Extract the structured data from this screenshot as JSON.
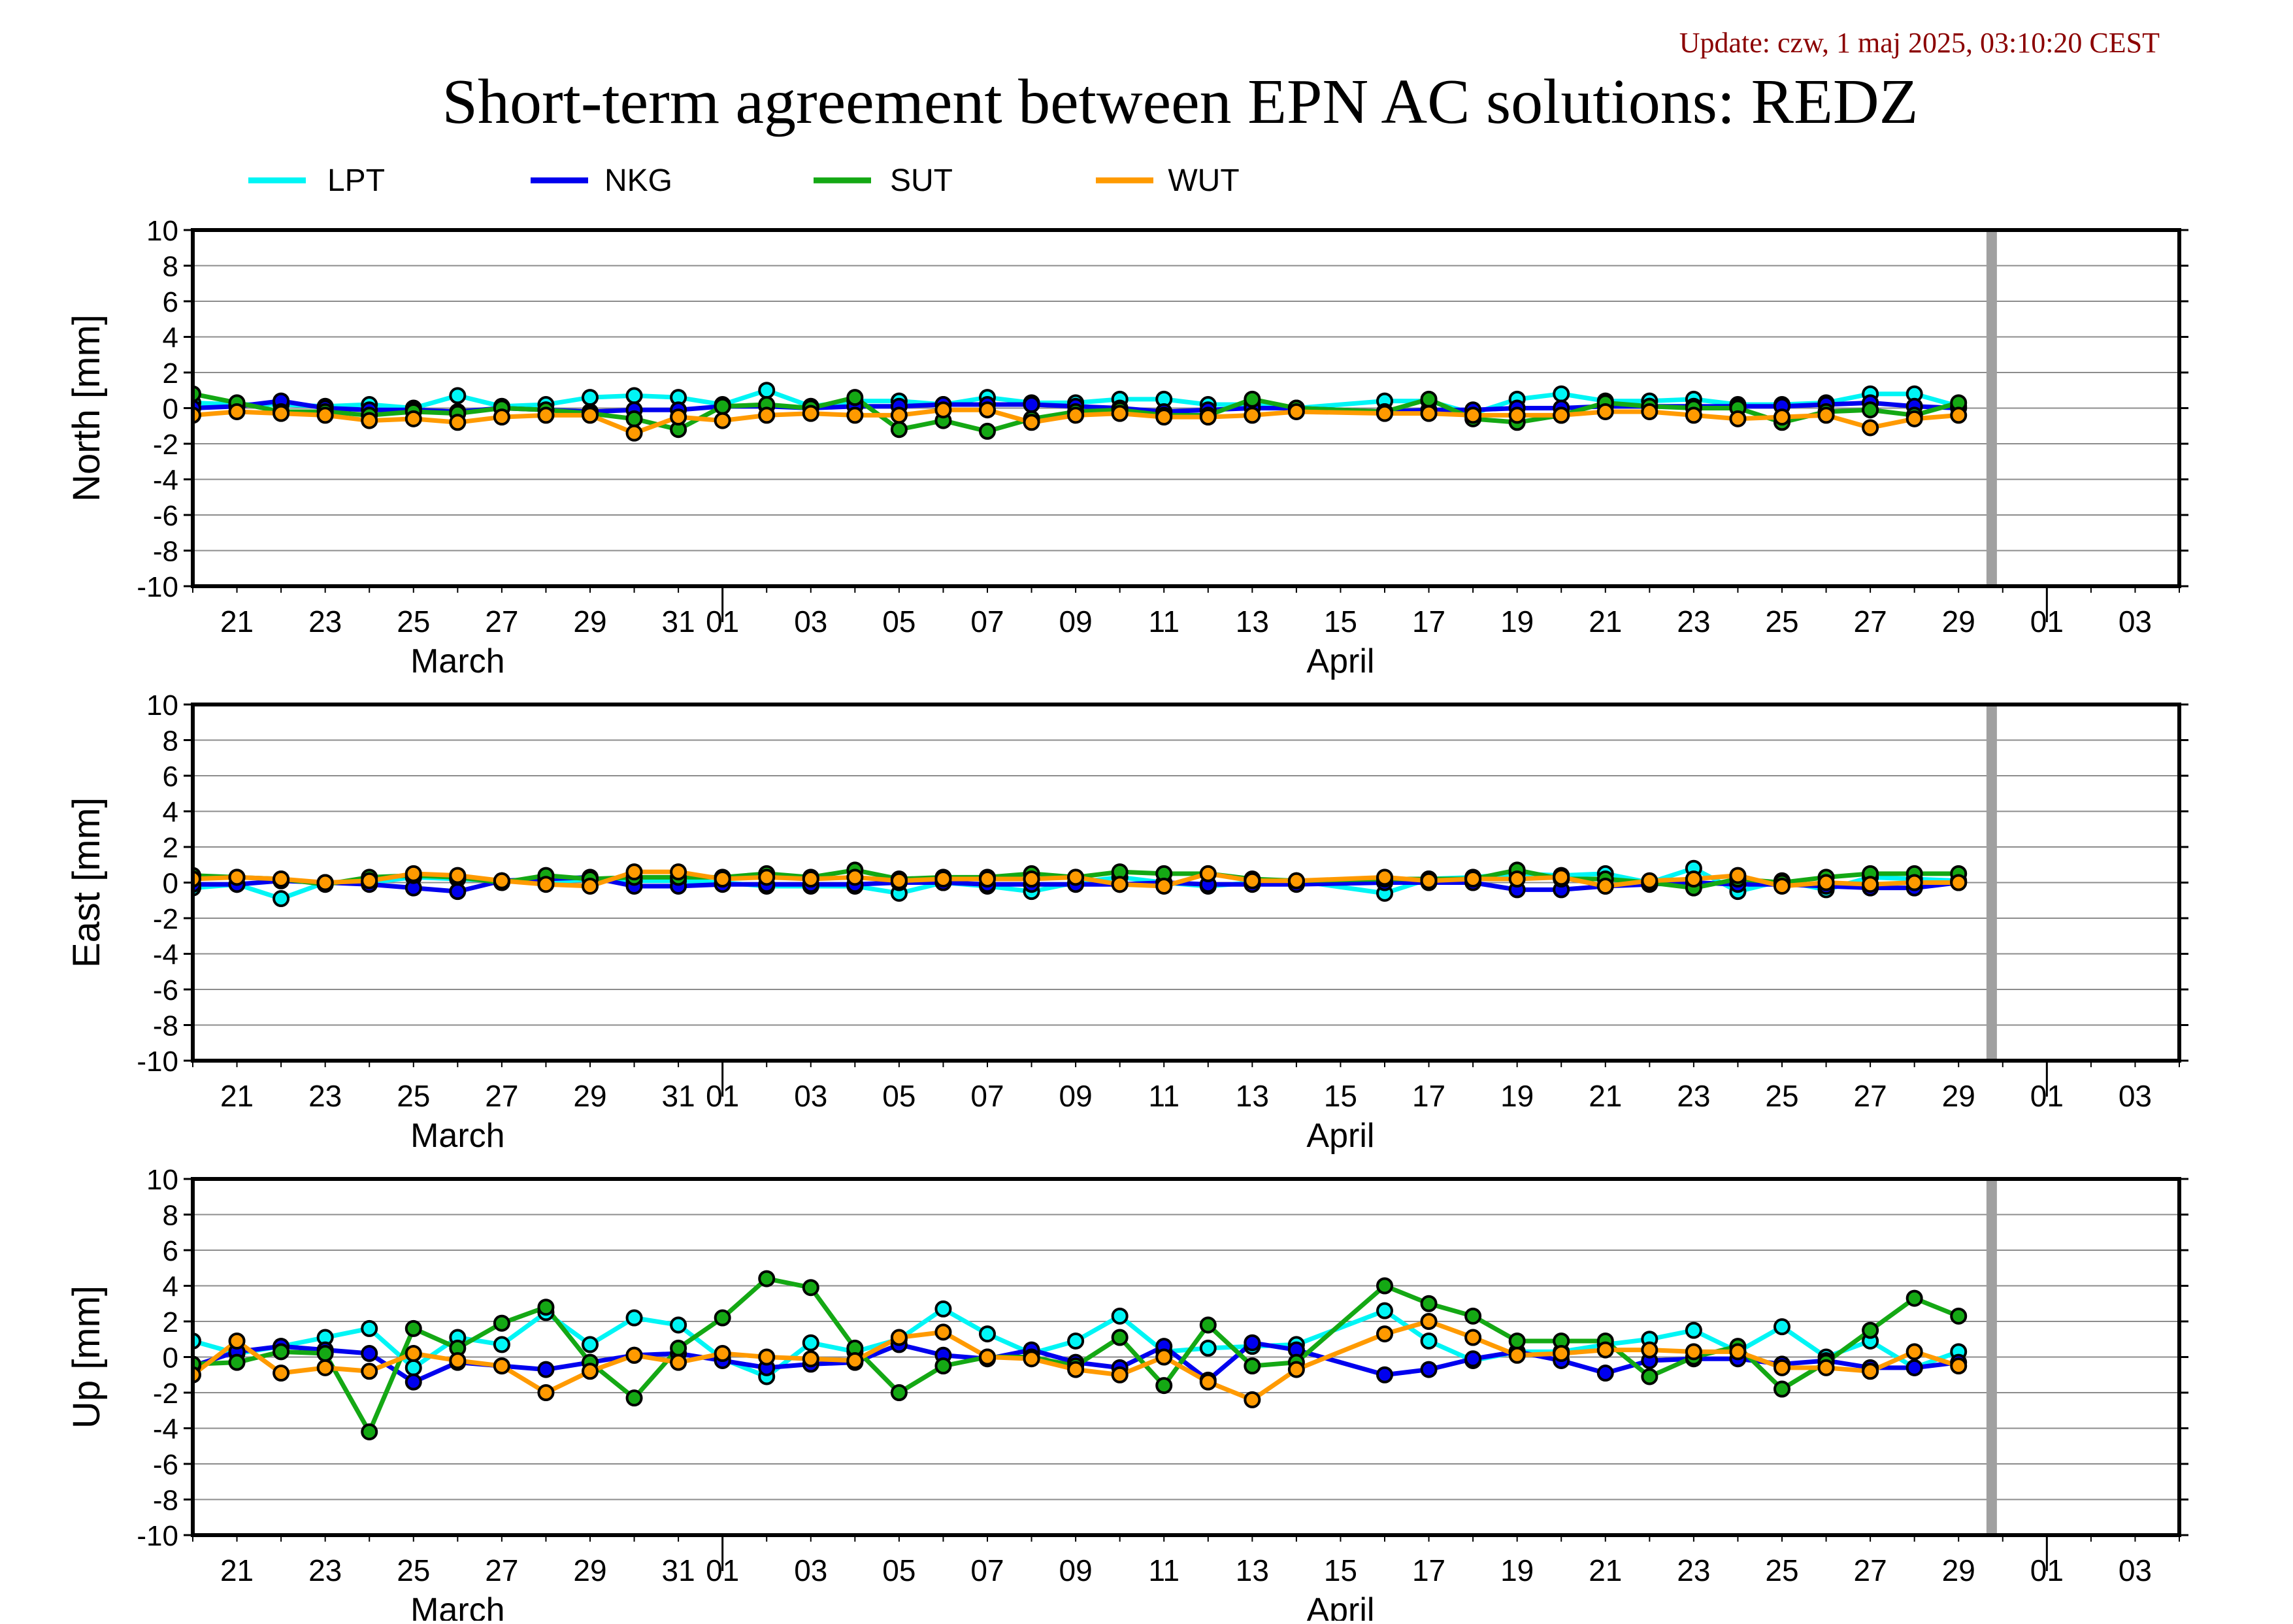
{
  "update_text": "Update: czw, 1 maj 2025, 03:10:20 CEST",
  "title": "Short-term agreement between EPN AC solutions: REDZ",
  "legend": [
    {
      "name": "LPT",
      "color": "#00f5f5"
    },
    {
      "name": "NKG",
      "color": "#0000ee"
    },
    {
      "name": "SUT",
      "color": "#14a814"
    },
    {
      "name": "WUT",
      "color": "#ff9a00"
    }
  ],
  "colors": {
    "update": "#8b0000",
    "gap_marker": "#a0a0a0"
  },
  "x_axis": {
    "start": "2025-03-20",
    "end": "2025-05-04",
    "tick_labels": [
      "21",
      "23",
      "25",
      "27",
      "29",
      "31",
      "01",
      "03",
      "05",
      "07",
      "09",
      "11",
      "13",
      "15",
      "17",
      "19",
      "21",
      "23",
      "25",
      "27",
      "29",
      "01",
      "03"
    ],
    "tick_dates": [
      "2025-03-21",
      "2025-03-23",
      "2025-03-25",
      "2025-03-27",
      "2025-03-29",
      "2025-03-31",
      "2025-04-01",
      "2025-04-03",
      "2025-04-05",
      "2025-04-07",
      "2025-04-09",
      "2025-04-11",
      "2025-04-13",
      "2025-04-15",
      "2025-04-17",
      "2025-04-19",
      "2025-04-21",
      "2025-04-23",
      "2025-04-25",
      "2025-04-27",
      "2025-04-29",
      "2025-05-01",
      "2025-05-03"
    ],
    "month_labels": [
      {
        "label": "March",
        "date": "2025-03-26"
      },
      {
        "label": "April",
        "date": "2025-04-15"
      }
    ],
    "month_boundaries": [
      "2025-04-01",
      "2025-05-01"
    ],
    "gap_marker_date": "2025-04-29T18:00"
  },
  "chart_data": [
    {
      "type": "line",
      "ylabel": "North [mm]",
      "ylim": [
        -10,
        10
      ],
      "yticks": [
        "10",
        "8",
        "6",
        "4",
        "2",
        "0",
        "-2",
        "-4",
        "-6",
        "-8",
        "-10"
      ],
      "grid": true,
      "x": [
        "2025-03-20",
        "2025-03-21",
        "2025-03-22",
        "2025-03-23",
        "2025-03-24",
        "2025-03-25",
        "2025-03-26",
        "2025-03-27",
        "2025-03-28",
        "2025-03-29",
        "2025-03-30",
        "2025-03-31",
        "2025-04-01",
        "2025-04-02",
        "2025-04-03",
        "2025-04-04",
        "2025-04-05",
        "2025-04-06",
        "2025-04-07",
        "2025-04-08",
        "2025-04-09",
        "2025-04-10",
        "2025-04-11",
        "2025-04-12",
        "2025-04-13",
        "2025-04-14",
        "2025-04-16",
        "2025-04-17",
        "2025-04-18",
        "2025-04-19",
        "2025-04-20",
        "2025-04-21",
        "2025-04-22",
        "2025-04-23",
        "2025-04-24",
        "2025-04-25",
        "2025-04-26",
        "2025-04-27",
        "2025-04-28",
        "2025-04-29"
      ],
      "series": [
        {
          "name": "LPT",
          "values": [
            0.3,
            0.2,
            0.2,
            0.1,
            0.2,
            0.0,
            0.7,
            0.1,
            0.2,
            0.6,
            0.7,
            0.6,
            0.2,
            1.0,
            0.1,
            0.4,
            0.4,
            0.2,
            0.6,
            0.3,
            0.3,
            0.5,
            0.5,
            0.2,
            0.2,
            0.0,
            0.4,
            0.4,
            -0.3,
            0.5,
            0.8,
            0.4,
            0.4,
            0.5,
            0.2,
            0.2,
            0.3,
            0.8,
            0.8,
            0.1
          ]
        },
        {
          "name": "NKG",
          "values": [
            0.0,
            0.1,
            0.4,
            0.0,
            -0.1,
            -0.1,
            -0.2,
            0.0,
            -0.1,
            -0.2,
            -0.1,
            -0.1,
            0.1,
            0.1,
            0.0,
            0.1,
            0.1,
            0.2,
            0.2,
            0.2,
            0.1,
            0.0,
            -0.2,
            -0.1,
            0.0,
            0.0,
            -0.2,
            -0.1,
            -0.1,
            0.0,
            0.0,
            0.1,
            0.1,
            0.1,
            0.1,
            0.1,
            0.2,
            0.3,
            0.1,
            0.0
          ]
        },
        {
          "name": "SUT",
          "values": [
            0.8,
            0.3,
            -0.2,
            -0.2,
            -0.4,
            -0.2,
            -0.3,
            0.0,
            -0.1,
            -0.3,
            -0.6,
            -1.2,
            0.1,
            0.2,
            0.0,
            0.6,
            -1.2,
            -0.7,
            -1.3,
            -0.6,
            -0.2,
            -0.1,
            -0.4,
            -0.4,
            0.5,
            0.0,
            -0.2,
            0.5,
            -0.6,
            -0.8,
            -0.4,
            0.3,
            0.1,
            0.0,
            0.0,
            -0.8,
            -0.2,
            -0.1,
            -0.4,
            0.3
          ]
        },
        {
          "name": "WUT",
          "values": [
            -0.4,
            -0.2,
            -0.3,
            -0.4,
            -0.7,
            -0.6,
            -0.8,
            -0.5,
            -0.4,
            -0.4,
            -1.4,
            -0.5,
            -0.7,
            -0.4,
            -0.3,
            -0.4,
            -0.4,
            -0.1,
            -0.1,
            -0.8,
            -0.4,
            -0.3,
            -0.5,
            -0.5,
            -0.4,
            -0.2,
            -0.3,
            -0.3,
            -0.4,
            -0.4,
            -0.4,
            -0.2,
            -0.2,
            -0.4,
            -0.6,
            -0.5,
            -0.4,
            -1.1,
            -0.6,
            -0.4
          ]
        }
      ]
    },
    {
      "type": "line",
      "ylabel": "East [mm]",
      "ylim": [
        -10,
        10
      ],
      "yticks": [
        "10",
        "8",
        "6",
        "4",
        "2",
        "0",
        "-2",
        "-4",
        "-6",
        "-8",
        "-10"
      ],
      "grid": true,
      "x": [
        "2025-03-20",
        "2025-03-21",
        "2025-03-22",
        "2025-03-23",
        "2025-03-24",
        "2025-03-25",
        "2025-03-26",
        "2025-03-27",
        "2025-03-28",
        "2025-03-29",
        "2025-03-30",
        "2025-03-31",
        "2025-04-01",
        "2025-04-02",
        "2025-04-03",
        "2025-04-04",
        "2025-04-05",
        "2025-04-06",
        "2025-04-07",
        "2025-04-08",
        "2025-04-09",
        "2025-04-10",
        "2025-04-11",
        "2025-04-12",
        "2025-04-13",
        "2025-04-14",
        "2025-04-16",
        "2025-04-17",
        "2025-04-18",
        "2025-04-19",
        "2025-04-20",
        "2025-04-21",
        "2025-04-22",
        "2025-04-23",
        "2025-04-24",
        "2025-04-25",
        "2025-04-26",
        "2025-04-27",
        "2025-04-28",
        "2025-04-29"
      ],
      "series": [
        {
          "name": "LPT",
          "values": [
            -0.3,
            -0.1,
            -0.9,
            0.0,
            0.0,
            0.3,
            0.2,
            0.1,
            0.0,
            0.2,
            0.1,
            0.1,
            0.0,
            -0.2,
            -0.2,
            -0.2,
            -0.6,
            0.0,
            -0.2,
            -0.5,
            0.0,
            0.3,
            0.0,
            -0.2,
            0.0,
            0.1,
            -0.6,
            0.2,
            0.3,
            0.5,
            0.4,
            0.5,
            0.0,
            0.8,
            -0.5,
            0.1,
            -0.4,
            0.3,
            0.2,
            0.1
          ]
        },
        {
          "name": "NKG",
          "values": [
            -0.1,
            -0.1,
            0.1,
            0.0,
            -0.1,
            -0.3,
            -0.5,
            0.1,
            0.2,
            0.3,
            -0.2,
            -0.2,
            -0.1,
            -0.1,
            -0.1,
            -0.1,
            0.0,
            0.0,
            -0.1,
            -0.1,
            -0.1,
            -0.1,
            0.0,
            -0.1,
            -0.1,
            -0.1,
            0.0,
            0.0,
            0.0,
            -0.4,
            -0.4,
            -0.2,
            -0.1,
            0.0,
            -0.1,
            -0.1,
            -0.2,
            -0.3,
            -0.3,
            0.0
          ]
        },
        {
          "name": "SUT",
          "values": [
            0.4,
            0.3,
            0.2,
            -0.1,
            0.3,
            0.4,
            0.3,
            0.0,
            0.4,
            0.2,
            0.3,
            0.3,
            0.3,
            0.5,
            0.3,
            0.7,
            0.2,
            0.3,
            0.3,
            0.5,
            0.3,
            0.6,
            0.5,
            0.5,
            0.2,
            0.1,
            0.2,
            0.2,
            0.2,
            0.7,
            0.2,
            0.2,
            0.0,
            -0.3,
            0.2,
            0.0,
            0.3,
            0.5,
            0.5,
            0.5
          ]
        },
        {
          "name": "WUT",
          "values": [
            0.2,
            0.3,
            0.2,
            0.0,
            0.1,
            0.5,
            0.4,
            0.1,
            -0.1,
            -0.2,
            0.6,
            0.6,
            0.2,
            0.3,
            0.2,
            0.3,
            0.1,
            0.2,
            0.2,
            0.2,
            0.3,
            -0.1,
            -0.2,
            0.5,
            0.1,
            0.1,
            0.3,
            0.1,
            0.2,
            0.2,
            0.3,
            -0.2,
            0.1,
            0.2,
            0.4,
            -0.2,
            0.0,
            -0.1,
            0.0,
            0.0
          ]
        }
      ]
    },
    {
      "type": "line",
      "ylabel": "Up [mm]",
      "ylim": [
        -10,
        10
      ],
      "yticks": [
        "10",
        "8",
        "6",
        "4",
        "2",
        "0",
        "-2",
        "-4",
        "-6",
        "-8",
        "-10"
      ],
      "grid": true,
      "x": [
        "2025-03-20",
        "2025-03-21",
        "2025-03-22",
        "2025-03-23",
        "2025-03-24",
        "2025-03-25",
        "2025-03-26",
        "2025-03-27",
        "2025-03-28",
        "2025-03-29",
        "2025-03-30",
        "2025-03-31",
        "2025-04-01",
        "2025-04-02",
        "2025-04-03",
        "2025-04-04",
        "2025-04-05",
        "2025-04-06",
        "2025-04-07",
        "2025-04-08",
        "2025-04-09",
        "2025-04-10",
        "2025-04-11",
        "2025-04-12",
        "2025-04-13",
        "2025-04-14",
        "2025-04-16",
        "2025-04-17",
        "2025-04-18",
        "2025-04-19",
        "2025-04-20",
        "2025-04-21",
        "2025-04-22",
        "2025-04-23",
        "2025-04-24",
        "2025-04-25",
        "2025-04-26",
        "2025-04-27",
        "2025-04-28",
        "2025-04-29"
      ],
      "series": [
        {
          "name": "LPT",
          "values": [
            0.9,
            0.2,
            0.6,
            1.1,
            1.6,
            -0.6,
            1.1,
            0.7,
            2.5,
            0.7,
            2.2,
            1.8,
            -0.1,
            -1.1,
            0.8,
            0.3,
            1.0,
            2.7,
            1.3,
            0.2,
            0.9,
            2.3,
            0.3,
            0.5,
            0.6,
            0.7,
            2.6,
            0.9,
            -0.2,
            0.3,
            0.3,
            0.7,
            1.0,
            1.5,
            0.3,
            1.7,
            0.0,
            0.9,
            -0.6,
            0.3
          ]
        },
        {
          "name": "NKG",
          "values": [
            -0.5,
            0.3,
            0.6,
            0.4,
            0.2,
            -1.4,
            -0.3,
            -0.5,
            -0.7,
            -0.3,
            0.1,
            0.2,
            -0.2,
            -0.6,
            -0.4,
            -0.3,
            0.7,
            0.1,
            -0.1,
            0.4,
            -0.3,
            -0.6,
            0.6,
            -1.3,
            0.8,
            0.4,
            -1.0,
            -0.7,
            -0.1,
            0.3,
            -0.2,
            -0.9,
            -0.2,
            -0.1,
            -0.1,
            -0.4,
            -0.2,
            -0.6,
            -0.6,
            -0.3
          ]
        },
        {
          "name": "SUT",
          "values": [
            -0.4,
            -0.3,
            0.3,
            0.2,
            -4.2,
            1.6,
            0.5,
            1.9,
            2.8,
            -0.3,
            -2.3,
            0.5,
            2.2,
            4.4,
            3.9,
            0.5,
            -2.0,
            -0.5,
            0.0,
            0.0,
            -0.5,
            1.1,
            -1.6,
            1.8,
            -0.5,
            -0.3,
            4.0,
            3.0,
            2.3,
            0.9,
            0.9,
            0.9,
            -1.1,
            0.0,
            0.6,
            -1.8,
            -0.3,
            1.5,
            3.3,
            2.3
          ]
        },
        {
          "name": "WUT",
          "values": [
            -1.0,
            0.9,
            -0.9,
            -0.6,
            -0.8,
            0.2,
            -0.2,
            -0.5,
            -2.0,
            -0.8,
            0.1,
            -0.3,
            0.2,
            0.0,
            -0.1,
            -0.2,
            1.1,
            1.4,
            0.0,
            -0.1,
            -0.7,
            -1.0,
            0.0,
            -1.4,
            -2.4,
            -0.7,
            1.3,
            2.0,
            1.1,
            0.1,
            0.2,
            0.4,
            0.4,
            0.3,
            0.3,
            -0.6,
            -0.6,
            -0.8,
            0.3,
            -0.5
          ]
        }
      ]
    }
  ]
}
